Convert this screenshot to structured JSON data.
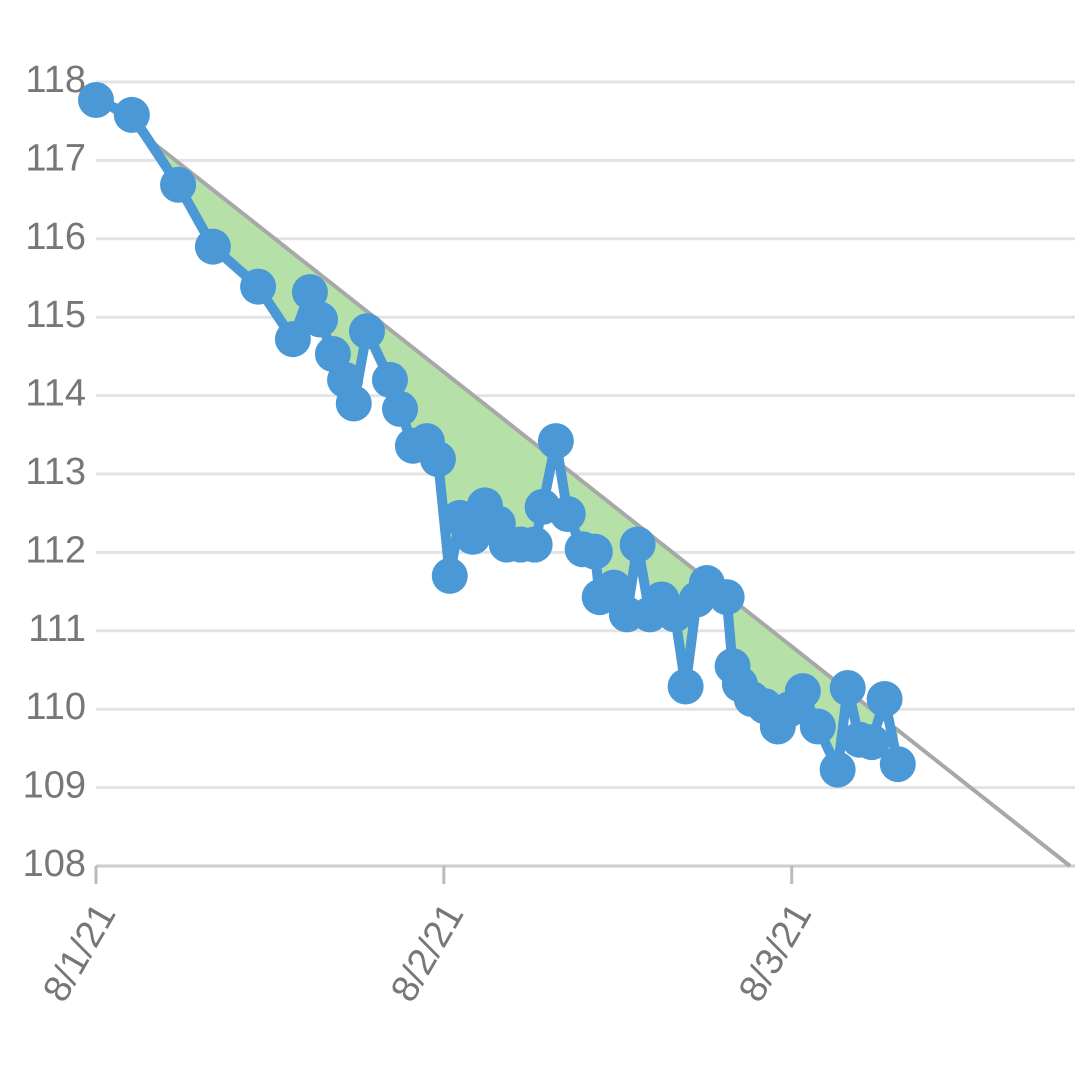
{
  "chart_data": {
    "type": "line",
    "x": [
      0,
      0.103,
      0.236,
      0.336,
      0.466,
      0.566,
      0.615,
      0.644,
      0.681,
      0.716,
      0.741,
      0.779,
      0.845,
      0.874,
      0.911,
      0.951,
      0.983,
      1.017,
      1.046,
      1.083,
      1.118,
      1.155,
      1.181,
      1.221,
      1.261,
      1.284,
      1.322,
      1.356,
      1.399,
      1.434,
      1.448,
      1.489,
      1.526,
      1.557,
      1.592,
      1.626,
      1.664,
      1.695,
      1.727,
      1.756,
      1.813,
      1.83,
      1.851,
      1.885,
      1.922,
      1.96,
      1.994,
      2.032,
      2.075,
      2.132,
      2.161,
      2.195,
      2.23,
      2.267,
      2.305
    ],
    "series": [
      {
        "color": "#4a98d6",
        "values": [
          117.77,
          117.58,
          116.69,
          115.9,
          115.39,
          114.72,
          115.32,
          114.97,
          114.53,
          114.2,
          113.9,
          114.82,
          114.2,
          113.83,
          113.36,
          113.42,
          113.19,
          111.7,
          112.44,
          112.2,
          112.6,
          112.37,
          112.1,
          112.1,
          112.1,
          112.58,
          113.42,
          112.49,
          112.04,
          112.01,
          111.43,
          111.55,
          111.21,
          112.1,
          111.21,
          111.4,
          111.21,
          110.29,
          111.4,
          111.61,
          111.43,
          110.55,
          110.32,
          110.13,
          110.04,
          109.78,
          110,
          110.23,
          109.78,
          109.23,
          110.27,
          109.61,
          109.58,
          110.13,
          109.3
        ]
      }
    ],
    "trend": {
      "x": [
        0,
        2.8
      ],
      "values": [
        117.8,
        108
      ],
      "color": "#a8a8a8",
      "fill": "#b5e0a8"
    },
    "xlim": [
      0,
      2.8
    ],
    "xticks": [
      {
        "value": 0,
        "label": "8/1/21"
      },
      {
        "value": 1,
        "label": "8/2/21"
      },
      {
        "value": 2,
        "label": "8/3/21"
      }
    ],
    "ylim": [
      108,
      118
    ],
    "yticks": [
      108,
      109,
      110,
      111,
      112,
      113,
      114,
      115,
      116,
      117,
      118
    ],
    "grid": true
  }
}
